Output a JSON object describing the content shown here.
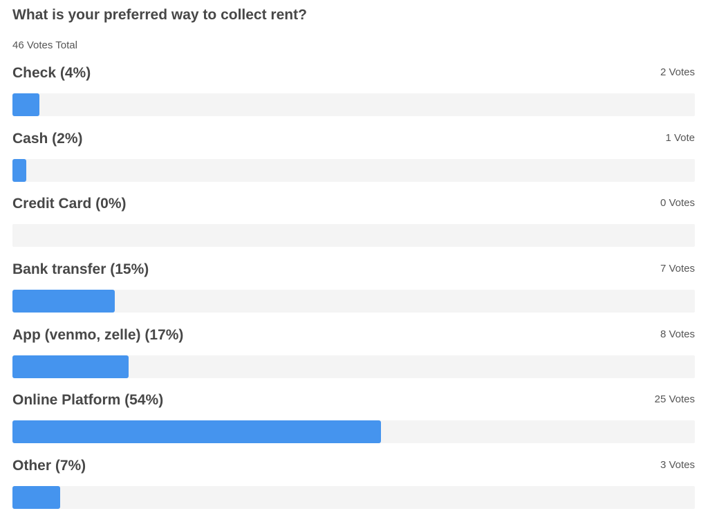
{
  "poll": {
    "question": "What is your preferred way to collect rent?",
    "total_label": "46 Votes Total",
    "colors": {
      "bar_fill": "#4594ee",
      "bar_track": "#f4f4f4",
      "text": "#474747"
    },
    "options": [
      {
        "label": "Check (4%)",
        "votes_label": "2 Votes",
        "votes": 2,
        "fraction": 0.04
      },
      {
        "label": "Cash (2%)",
        "votes_label": "1 Vote",
        "votes": 1,
        "fraction": 0.02
      },
      {
        "label": "Credit Card (0%)",
        "votes_label": "0 Votes",
        "votes": 0,
        "fraction": 0.0
      },
      {
        "label": "Bank transfer (15%)",
        "votes_label": "7 Votes",
        "votes": 7,
        "fraction": 0.15
      },
      {
        "label": "App (venmo, zelle) (17%)",
        "votes_label": "8 Votes",
        "votes": 8,
        "fraction": 0.17
      },
      {
        "label": "Online Platform (54%)",
        "votes_label": "25 Votes",
        "votes": 25,
        "fraction": 0.54
      },
      {
        "label": "Other (7%)",
        "votes_label": "3 Votes",
        "votes": 3,
        "fraction": 0.07
      }
    ]
  }
}
